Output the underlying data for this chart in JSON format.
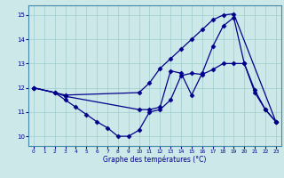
{
  "xlabel": "Graphe des températures (°C)",
  "xlim": [
    -0.5,
    23.5
  ],
  "ylim": [
    9.6,
    15.4
  ],
  "yticks": [
    10,
    11,
    12,
    13,
    14,
    15
  ],
  "xticks": [
    0,
    1,
    2,
    3,
    4,
    5,
    6,
    7,
    8,
    9,
    10,
    11,
    12,
    13,
    14,
    15,
    16,
    17,
    18,
    19,
    20,
    21,
    22,
    23
  ],
  "bg_color": "#cce8e8",
  "line_color": "#00008b",
  "series1_x": [
    0,
    2,
    3,
    4,
    5,
    6,
    7,
    8,
    9,
    10,
    11,
    12,
    13,
    14,
    15,
    16,
    17,
    18,
    19,
    20,
    21,
    22,
    23
  ],
  "series1_y": [
    12.0,
    11.8,
    11.5,
    11.2,
    10.9,
    10.6,
    10.35,
    10.0,
    10.0,
    10.25,
    11.0,
    11.1,
    11.5,
    12.5,
    12.6,
    12.55,
    12.75,
    13.0,
    13.0,
    13.0,
    11.9,
    11.1,
    10.6
  ],
  "series2_x": [
    0,
    2,
    3,
    10,
    11,
    12,
    13,
    14,
    15,
    16,
    17,
    18,
    19,
    20,
    21,
    22,
    23
  ],
  "series2_y": [
    12.0,
    11.8,
    11.65,
    11.1,
    11.1,
    11.2,
    12.7,
    12.6,
    11.7,
    12.6,
    13.7,
    14.55,
    14.9,
    13.0,
    11.8,
    11.1,
    10.6
  ],
  "series3_x": [
    0,
    3,
    10,
    11,
    12,
    13,
    14,
    15,
    16,
    17,
    18,
    19,
    23
  ],
  "series3_y": [
    12.0,
    11.7,
    11.8,
    12.2,
    12.8,
    13.2,
    13.6,
    14.0,
    14.4,
    14.8,
    15.0,
    15.05,
    10.6
  ]
}
